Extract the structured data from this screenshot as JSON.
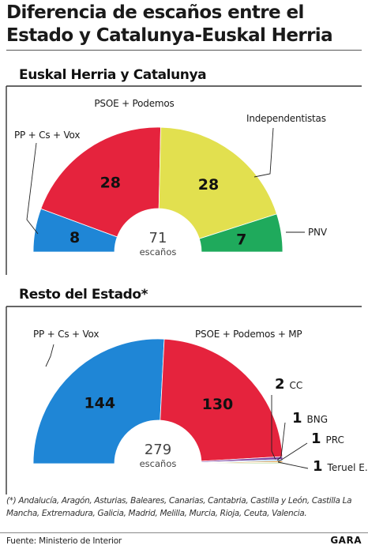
{
  "title": "Diferencia de escaños entre el Estado y Catalunya-Euskal Herria",
  "footnote": "(*) Andalucía, Aragón, Asturias, Baleares, Canarias, Cantabria, Castilla y León, Castilla La Mancha, Extremadura, Galicia, Madrid, Melilla, Murcia, Rioja, Ceuta, Valencia.",
  "source": "Fuente: Ministerio de Interior",
  "brand": "GARA",
  "chart_data": [
    {
      "type": "pie",
      "subtype": "parliament-half-donut",
      "title": "Euskal Herria y Catalunya",
      "total": 71,
      "total_label": "escaños",
      "series": [
        {
          "name": "PP + Cs + Vox",
          "value": 8,
          "color": "#1f86d6"
        },
        {
          "name": "PSOE + Podemos",
          "value": 28,
          "color": "#e5233d"
        },
        {
          "name": "Independentistas",
          "value": 28,
          "color": "#e2e04f"
        },
        {
          "name": "PNV",
          "value": 7,
          "color": "#1faa5c"
        }
      ]
    },
    {
      "type": "pie",
      "subtype": "parliament-half-donut",
      "title": "Resto del Estado*",
      "total": 279,
      "total_label": "escaños",
      "series": [
        {
          "name": "PP + Cs + Vox",
          "value": 144,
          "color": "#1f86d6"
        },
        {
          "name": "PSOE + Podemos + MP",
          "value": 130,
          "color": "#e5233d"
        },
        {
          "name": "CC",
          "value": 2,
          "color": "#7b3fa0"
        },
        {
          "name": "BNG",
          "value": 1,
          "color": "#6a9fd8"
        },
        {
          "name": "PRC",
          "value": 1,
          "color": "#e49b3a"
        },
        {
          "name": "Teruel E.",
          "value": 1,
          "color": "#bfe0a8"
        }
      ]
    }
  ]
}
